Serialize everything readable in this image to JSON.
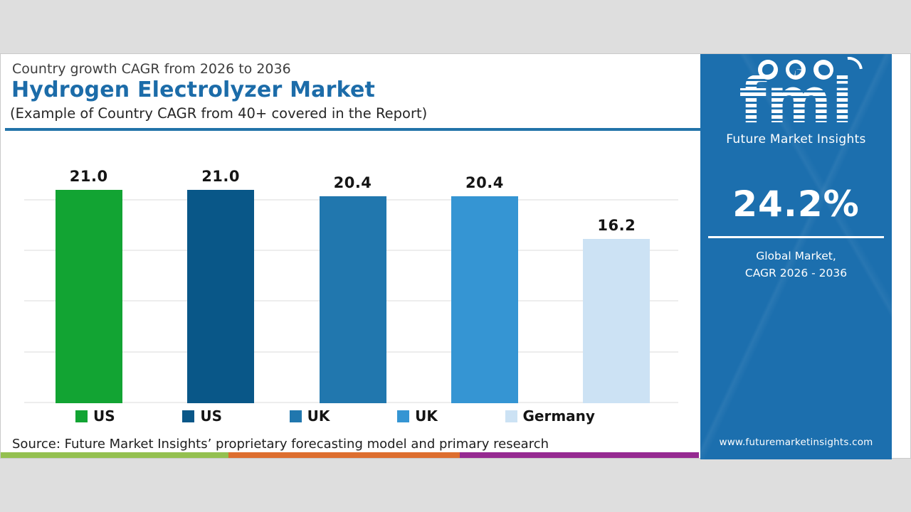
{
  "header": {
    "kicker": "Country growth CAGR from 2026 to 2036",
    "title": "Hydrogen Electrolyzer Market",
    "subtitle": "(Example of Country CAGR from 40+ covered in the Report)"
  },
  "chart_data": {
    "type": "bar",
    "title": "Hydrogen Electrolyzer Market — Country growth CAGR from 2026 to 2036",
    "categories": [
      "US",
      "US",
      "UK",
      "UK",
      "Germany"
    ],
    "values": [
      21.0,
      21.0,
      20.4,
      20.4,
      16.2
    ],
    "value_labels": [
      "21.0",
      "21.0",
      "20.4",
      "20.4",
      "16.2"
    ],
    "bar_colors": [
      "#12a433",
      "#095788",
      "#2177ae",
      "#3595d3",
      "#cce2f4"
    ],
    "xlabel": "",
    "ylabel": "",
    "ylim": [
      0,
      25.3
    ],
    "gridline_values": [
      0,
      5,
      10,
      15,
      20
    ],
    "grid": "horizontal-faint",
    "legend_position": "bottom"
  },
  "source_text": "Source: Future Market Insights’ proprietary forecasting model and primary research",
  "footer_stripe": {
    "colors": [
      "#94c050",
      "#dd6e2f",
      "#962a91"
    ]
  },
  "sidebar": {
    "bg_color": "#1c6fae",
    "logo_text": "fmi",
    "brand_name": "Future Market Insights",
    "stat_value": "24.2%",
    "stat_label_line1": "Global Market,",
    "stat_label_line2": "CAGR 2026 - 2036",
    "website": "www.futuremarketinsights.com",
    "icons": [
      "us-map-globe-icon",
      "compass-globe-icon",
      "world-globe-icon",
      "swoosh-arc-icon"
    ]
  }
}
